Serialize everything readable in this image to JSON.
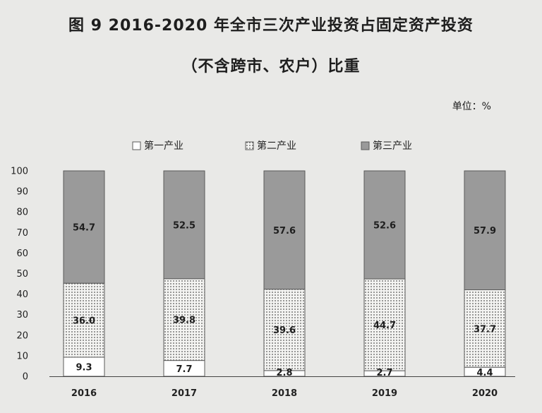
{
  "title_line1": "图 9   2016-2020 年全市三次产业投资占固定资产投资",
  "title_line2": "（不含跨市、农户）比重",
  "unit": "单位：%",
  "colors": {
    "primary": "#ffffff",
    "secondary_dots": "#555555",
    "tertiary": "#9a9a9a",
    "axis": "#444444"
  },
  "chart_data": {
    "type": "bar",
    "stacked": true,
    "categories": [
      "2016",
      "2017",
      "2018",
      "2019",
      "2020"
    ],
    "series": [
      {
        "name": "第一产业",
        "values": [
          9.3,
          7.7,
          2.8,
          2.7,
          4.4
        ],
        "labels": [
          "9.3",
          "7.7",
          "2.8",
          "2.7",
          "4.4"
        ]
      },
      {
        "name": "第二产业",
        "values": [
          36.0,
          39.8,
          39.6,
          44.7,
          37.7
        ],
        "labels": [
          "36.0",
          "39.8",
          "39.6",
          "44.7",
          "37.7"
        ]
      },
      {
        "name": "第三产业",
        "values": [
          54.7,
          52.5,
          57.6,
          52.6,
          57.9
        ],
        "labels": [
          "54.7",
          "52.5",
          "57.6",
          "52.6",
          "57.9"
        ]
      }
    ],
    "yticks": [
      "0",
      "10",
      "20",
      "30",
      "40",
      "50",
      "60",
      "70",
      "80",
      "90",
      "100"
    ],
    "ylim": [
      0,
      100
    ],
    "grid": false,
    "legend_position": "top"
  }
}
